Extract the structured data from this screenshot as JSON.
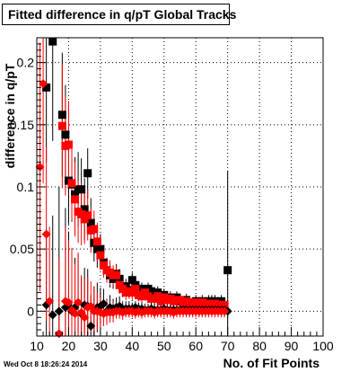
{
  "title": "Fitted difference in q/pT  Global Tracks",
  "timestamp": "Wed Oct  8 18:26:24 2014",
  "chart_data": {
    "type": "scatter",
    "title": "Fitted difference in q/pT  Global Tracks",
    "xlabel": "No. of Fit Points",
    "ylabel": "difference in q/pT",
    "xlim": [
      10,
      100
    ],
    "ylim": [
      -0.02,
      0.22
    ],
    "x_ticks": [
      10,
      20,
      30,
      40,
      50,
      60,
      70,
      80,
      90,
      100
    ],
    "y_ticks": [
      0,
      0.05,
      0.1,
      0.15,
      0.2
    ],
    "y_tick_labels": [
      "0",
      "0.05",
      "0.1",
      "0.15",
      "0.2"
    ],
    "grid": true,
    "series": [
      {
        "marker": "square",
        "color": "#000000",
        "points": [
          [
            13,
            0.18,
            0.06
          ],
          [
            15,
            0.217,
            0.08
          ],
          [
            18,
            0.158,
            0.05
          ],
          [
            19,
            0.142,
            0.04
          ],
          [
            20,
            0.105,
            0.035
          ],
          [
            21,
            0.102,
            0.03
          ],
          [
            22,
            0.094,
            0.03
          ],
          [
            23,
            0.098,
            0.03
          ],
          [
            24,
            0.098,
            0.025
          ],
          [
            25,
            0.082,
            0.025
          ],
          [
            26,
            0.111,
            0.02
          ],
          [
            27,
            0.071,
            0.02
          ],
          [
            28,
            0.055,
            0.015
          ],
          [
            29,
            0.05,
            0.015
          ],
          [
            30,
            0.05,
            0.012
          ],
          [
            31,
            0.039,
            0.01
          ],
          [
            32,
            0.033,
            0.01
          ],
          [
            33,
            0.029,
            0.01
          ],
          [
            34,
            0.026,
            0.008
          ],
          [
            35,
            0.03,
            0.008
          ],
          [
            36,
            0.026,
            0.008
          ],
          [
            37,
            0.02,
            0.007
          ],
          [
            38,
            0.02,
            0.006
          ],
          [
            39,
            0.017,
            0.006
          ],
          [
            40,
            0.025,
            0.006
          ],
          [
            41,
            0.021,
            0.006
          ],
          [
            42,
            0.016,
            0.005
          ],
          [
            43,
            0.018,
            0.005
          ],
          [
            44,
            0.014,
            0.005
          ],
          [
            45,
            0.018,
            0.005
          ],
          [
            46,
            0.016,
            0.005
          ],
          [
            47,
            0.011,
            0.005
          ],
          [
            48,
            0.015,
            0.005
          ],
          [
            49,
            0.011,
            0.005
          ],
          [
            50,
            0.013,
            0.005
          ],
          [
            51,
            0.011,
            0.005
          ],
          [
            52,
            0.011,
            0.005
          ],
          [
            53,
            0.009,
            0.005
          ],
          [
            54,
            0.011,
            0.005
          ],
          [
            55,
            0.008,
            0.005
          ],
          [
            56,
            0.006,
            0.005
          ],
          [
            57,
            0.009,
            0.005
          ],
          [
            58,
            0.007,
            0.005
          ],
          [
            59,
            0.006,
            0.005
          ],
          [
            60,
            0.008,
            0.005
          ],
          [
            61,
            0.004,
            0.005
          ],
          [
            62,
            0.008,
            0.005
          ],
          [
            63,
            0.006,
            0.005
          ],
          [
            64,
            0.008,
            0.005
          ],
          [
            65,
            0.008,
            0.005
          ],
          [
            66,
            0.008,
            0.005
          ],
          [
            67,
            0.005,
            0.005
          ],
          [
            68,
            0.008,
            0.005
          ],
          [
            70,
            0.033,
            0.08
          ]
        ]
      },
      {
        "marker": "square",
        "color": "#ff0000",
        "points": [
          [
            18,
            0.149,
            0.05
          ],
          [
            19,
            0.133,
            0.04
          ],
          [
            20,
            0.134,
            0.035
          ],
          [
            21,
            0.103,
            0.03
          ],
          [
            22,
            0.09,
            0.03
          ],
          [
            23,
            0.08,
            0.025
          ],
          [
            24,
            0.078,
            0.025
          ],
          [
            25,
            0.074,
            0.02
          ],
          [
            26,
            0.077,
            0.02
          ],
          [
            27,
            0.065,
            0.018
          ],
          [
            28,
            0.066,
            0.015
          ],
          [
            29,
            0.056,
            0.015
          ],
          [
            30,
            0.045,
            0.012
          ],
          [
            31,
            0.037,
            0.01
          ],
          [
            32,
            0.033,
            0.01
          ],
          [
            33,
            0.031,
            0.01
          ],
          [
            34,
            0.029,
            0.008
          ],
          [
            35,
            0.029,
            0.008
          ],
          [
            36,
            0.021,
            0.007
          ],
          [
            37,
            0.018,
            0.007
          ],
          [
            38,
            0.015,
            0.006
          ],
          [
            39,
            0.016,
            0.006
          ],
          [
            40,
            0.015,
            0.006
          ],
          [
            41,
            0.018,
            0.006
          ],
          [
            42,
            0.013,
            0.005
          ],
          [
            43,
            0.012,
            0.005
          ],
          [
            44,
            0.015,
            0.005
          ],
          [
            45,
            0.012,
            0.005
          ],
          [
            46,
            0.01,
            0.005
          ],
          [
            47,
            0.01,
            0.005
          ],
          [
            48,
            0.012,
            0.005
          ],
          [
            49,
            0.008,
            0.005
          ],
          [
            50,
            0.011,
            0.005
          ],
          [
            51,
            0.009,
            0.005
          ],
          [
            52,
            0.01,
            0.005
          ],
          [
            53,
            0.008,
            0.005
          ],
          [
            54,
            0.009,
            0.005
          ],
          [
            55,
            0.009,
            0.005
          ],
          [
            56,
            0.007,
            0.005
          ],
          [
            57,
            0.008,
            0.005
          ],
          [
            58,
            0.007,
            0.005
          ],
          [
            59,
            0.006,
            0.005
          ],
          [
            60,
            0.007,
            0.005
          ],
          [
            61,
            0.006,
            0.005
          ],
          [
            62,
            0.007,
            0.005
          ],
          [
            63,
            0.005,
            0.005
          ],
          [
            64,
            0.006,
            0.005
          ],
          [
            65,
            0.005,
            0.005
          ],
          [
            66,
            0.006,
            0.005
          ],
          [
            67,
            0.005,
            0.005
          ],
          [
            68,
            0.005,
            0.005
          ],
          [
            69,
            0.005,
            0.005
          ]
        ]
      },
      {
        "marker": "diamond",
        "color": "#000000",
        "points": [
          [
            13,
            0.005,
            0.06
          ],
          [
            15,
            -0.003,
            0.08
          ],
          [
            17,
            0.0,
            0.1
          ],
          [
            19,
            0.003,
            0.08
          ],
          [
            20,
            0.004,
            0.06
          ],
          [
            21,
            0.0,
            0.05
          ],
          [
            22,
            0.003,
            0.04
          ],
          [
            23,
            0.007,
            0.04
          ],
          [
            24,
            -0.002,
            0.03
          ],
          [
            25,
            0.005,
            0.03
          ],
          [
            26,
            0.004,
            0.03
          ],
          [
            27,
            -0.012,
            0.025
          ],
          [
            28,
            0.0,
            0.02
          ],
          [
            29,
            0.003,
            0.02
          ],
          [
            30,
            0.004,
            0.015
          ],
          [
            31,
            0.006,
            0.012
          ],
          [
            32,
            0.0,
            0.01
          ],
          [
            33,
            0.003,
            0.01
          ],
          [
            34,
            0.002,
            0.008
          ],
          [
            35,
            0.003,
            0.008
          ],
          [
            36,
            0.004,
            0.008
          ],
          [
            37,
            0.002,
            0.006
          ],
          [
            38,
            0.002,
            0.006
          ],
          [
            39,
            0.002,
            0.006
          ],
          [
            40,
            0.002,
            0.005
          ],
          [
            41,
            0.003,
            0.005
          ],
          [
            42,
            0.002,
            0.005
          ],
          [
            43,
            0.002,
            0.005
          ],
          [
            44,
            0.001,
            0.005
          ],
          [
            45,
            0.001,
            0.005
          ],
          [
            46,
            0.002,
            0.005
          ],
          [
            47,
            0.001,
            0.005
          ],
          [
            48,
            0.001,
            0.005
          ],
          [
            49,
            0.001,
            0.005
          ],
          [
            50,
            0.002,
            0.005
          ],
          [
            51,
            0.001,
            0.005
          ],
          [
            52,
            0.001,
            0.005
          ],
          [
            53,
            0.001,
            0.005
          ],
          [
            54,
            0.001,
            0.005
          ],
          [
            55,
            0.001,
            0.005
          ],
          [
            56,
            0.001,
            0.005
          ],
          [
            57,
            0.001,
            0.005
          ],
          [
            58,
            0.001,
            0.005
          ],
          [
            59,
            0.001,
            0.005
          ],
          [
            60,
            0.001,
            0.005
          ],
          [
            61,
            0.001,
            0.005
          ],
          [
            62,
            0.001,
            0.005
          ],
          [
            63,
            0.001,
            0.005
          ],
          [
            64,
            0.001,
            0.005
          ],
          [
            65,
            0.001,
            0.005
          ],
          [
            66,
            0.001,
            0.005
          ],
          [
            67,
            0.001,
            0.005
          ],
          [
            68,
            0.001,
            0.005
          ],
          [
            69,
            0.001,
            0.005
          ],
          [
            70,
            0.0,
            0.005
          ]
        ]
      },
      {
        "marker": "diamond",
        "color": "#ff0000",
        "points": [
          [
            11,
            0.116,
            0.1
          ],
          [
            12,
            0.183,
            0.08
          ],
          [
            13,
            0.062,
            0.07
          ],
          [
            14,
            0.008,
            0.06
          ],
          [
            17,
            -0.018,
            0.06
          ],
          [
            19,
            0.008,
            0.06
          ],
          [
            20,
            0.007,
            0.05
          ],
          [
            21,
            0.001,
            0.05
          ],
          [
            22,
            -0.002,
            0.04
          ],
          [
            23,
            0.007,
            0.04
          ],
          [
            24,
            -0.001,
            0.03
          ],
          [
            25,
            -0.005,
            0.03
          ],
          [
            26,
            0.003,
            0.025
          ],
          [
            27,
            0.004,
            0.02
          ],
          [
            28,
            0.0,
            0.02
          ],
          [
            29,
            0.0,
            0.015
          ],
          [
            30,
            -0.001,
            0.012
          ],
          [
            31,
            -0.002,
            0.01
          ],
          [
            32,
            -0.001,
            0.01
          ],
          [
            33,
            -0.001,
            0.008
          ],
          [
            34,
            -0.001,
            0.008
          ],
          [
            35,
            0.0,
            0.006
          ],
          [
            36,
            0.0,
            0.006
          ],
          [
            37,
            -0.001,
            0.006
          ],
          [
            38,
            0.0,
            0.005
          ],
          [
            39,
            0.0,
            0.005
          ],
          [
            40,
            0.0,
            0.005
          ],
          [
            41,
            -0.001,
            0.005
          ],
          [
            42,
            0.0,
            0.005
          ],
          [
            43,
            -0.001,
            0.005
          ],
          [
            44,
            0.0,
            0.005
          ],
          [
            45,
            0.0,
            0.005
          ],
          [
            46,
            0.0,
            0.005
          ],
          [
            47,
            -0.001,
            0.005
          ],
          [
            48,
            0.0,
            0.005
          ],
          [
            49,
            0.0,
            0.005
          ],
          [
            50,
            0.0,
            0.005
          ],
          [
            51,
            0.0,
            0.005
          ],
          [
            52,
            0.0,
            0.005
          ],
          [
            53,
            -0.001,
            0.005
          ],
          [
            54,
            0.0,
            0.005
          ],
          [
            55,
            0.0,
            0.005
          ],
          [
            56,
            0.0,
            0.005
          ],
          [
            57,
            0.0,
            0.005
          ],
          [
            58,
            0.0,
            0.005
          ],
          [
            59,
            0.0,
            0.005
          ],
          [
            60,
            0.0,
            0.005
          ],
          [
            61,
            0.0,
            0.005
          ],
          [
            62,
            0.0,
            0.005
          ],
          [
            63,
            0.0,
            0.005
          ],
          [
            64,
            0.0,
            0.005
          ],
          [
            65,
            0.0,
            0.005
          ],
          [
            66,
            0.0,
            0.005
          ],
          [
            67,
            0.0,
            0.005
          ],
          [
            68,
            0.0,
            0.005
          ],
          [
            69,
            0.0,
            0.005
          ]
        ]
      }
    ]
  }
}
